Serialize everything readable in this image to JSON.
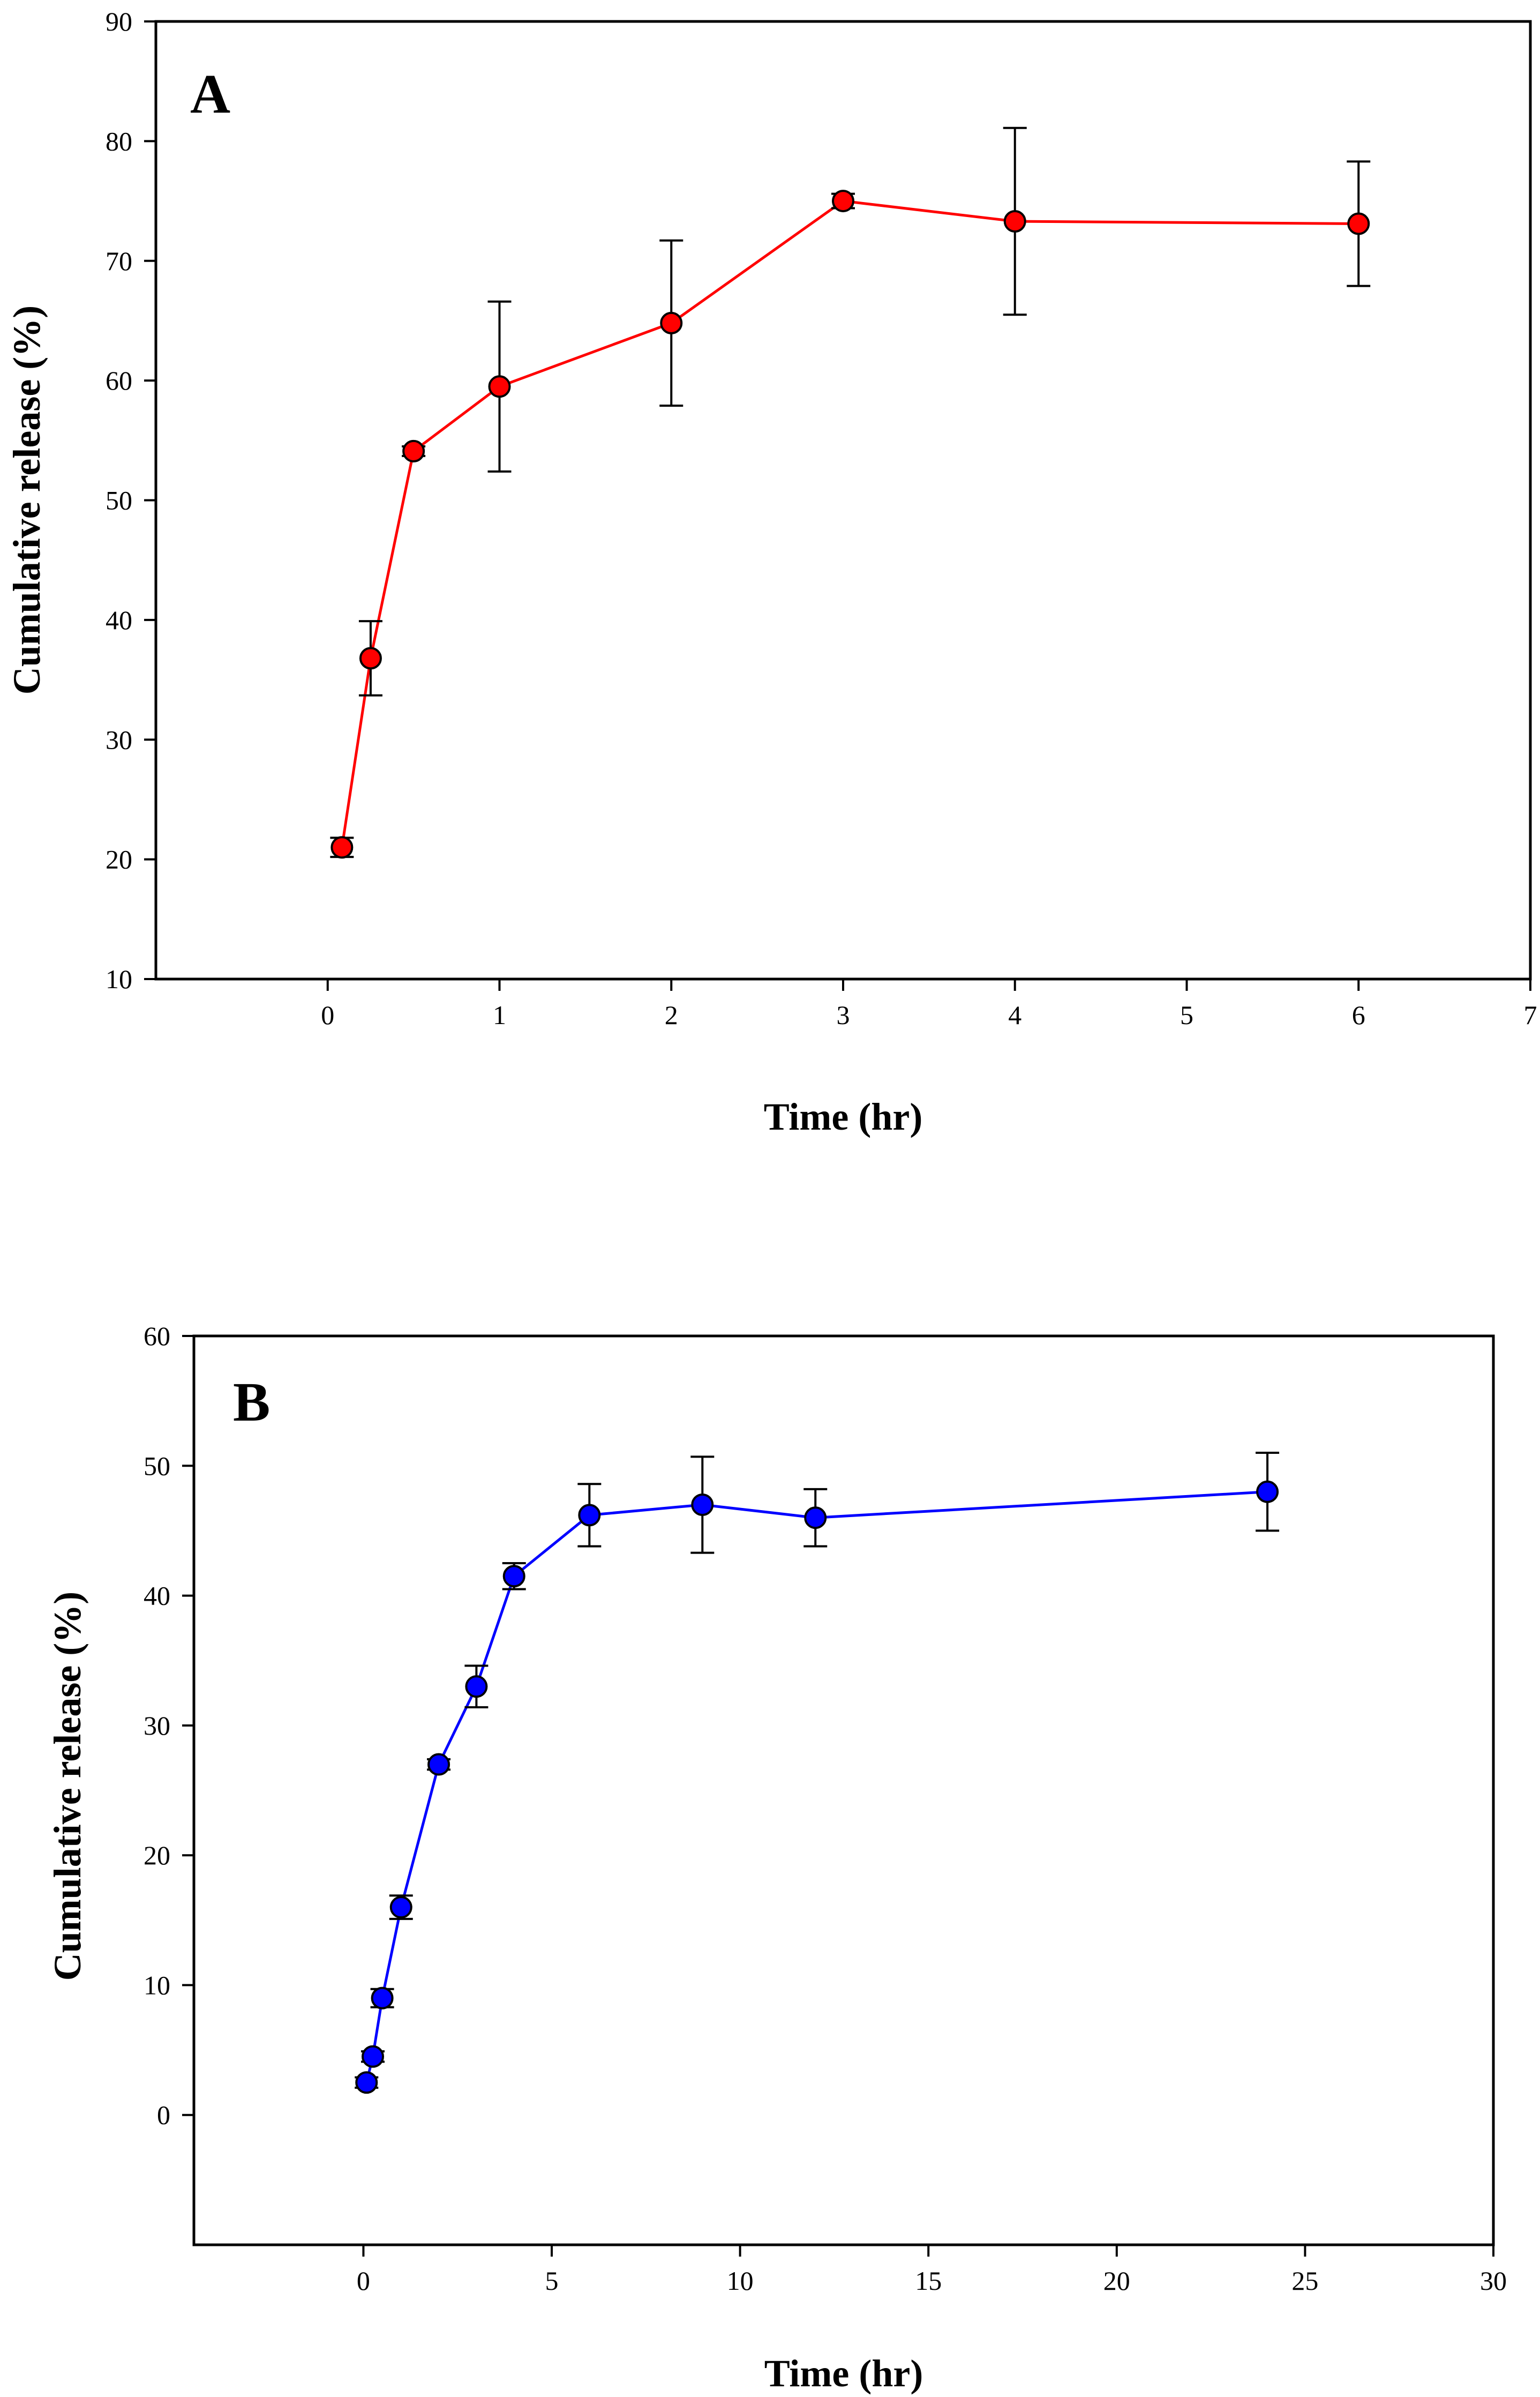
{
  "chart_data": [
    {
      "type": "scatter",
      "panel_label": "A",
      "xlabel": "Time (hr)",
      "ylabel": "Cumulative release (%)",
      "xlim": [
        -1,
        7
      ],
      "ylim": [
        10,
        90
      ],
      "xticks": [
        0,
        1,
        2,
        3,
        4,
        5,
        6,
        7
      ],
      "yticks": [
        10,
        20,
        30,
        40,
        50,
        60,
        70,
        80,
        90
      ],
      "grid": false,
      "series": [
        {
          "name": "A",
          "color": "#ff0000",
          "line_color": "#ff0000",
          "x": [
            0.083,
            0.25,
            0.5,
            1,
            2,
            3,
            4,
            6
          ],
          "y": [
            21.0,
            36.8,
            54.1,
            59.5,
            64.8,
            75.0,
            73.3,
            73.1
          ],
          "err": [
            0.8,
            3.1,
            0.4,
            7.1,
            6.9,
            0.6,
            7.8,
            5.2
          ]
        }
      ]
    },
    {
      "type": "scatter",
      "panel_label": "B",
      "xlabel": "Time (hr)",
      "ylabel": "Cumulative release (%)",
      "xlim": [
        -4.5,
        30
      ],
      "ylim": [
        -10,
        60
      ],
      "xticks": [
        0,
        5,
        10,
        15,
        20,
        25,
        30
      ],
      "yticks": [
        0,
        10,
        20,
        30,
        40,
        50,
        60
      ],
      "grid": false,
      "series": [
        {
          "name": "B",
          "color": "#0000ff",
          "line_color": "#0000ff",
          "x": [
            0.083,
            0.25,
            0.5,
            1,
            2,
            3,
            4,
            6,
            9,
            12,
            24
          ],
          "y": [
            2.5,
            4.5,
            9.0,
            16.0,
            27.0,
            33.0,
            41.5,
            46.2,
            47.0,
            46.0,
            48.0
          ],
          "err": [
            0.4,
            0.4,
            0.7,
            0.9,
            0.4,
            1.6,
            1.0,
            2.4,
            3.7,
            2.2,
            3.0
          ]
        }
      ]
    }
  ]
}
